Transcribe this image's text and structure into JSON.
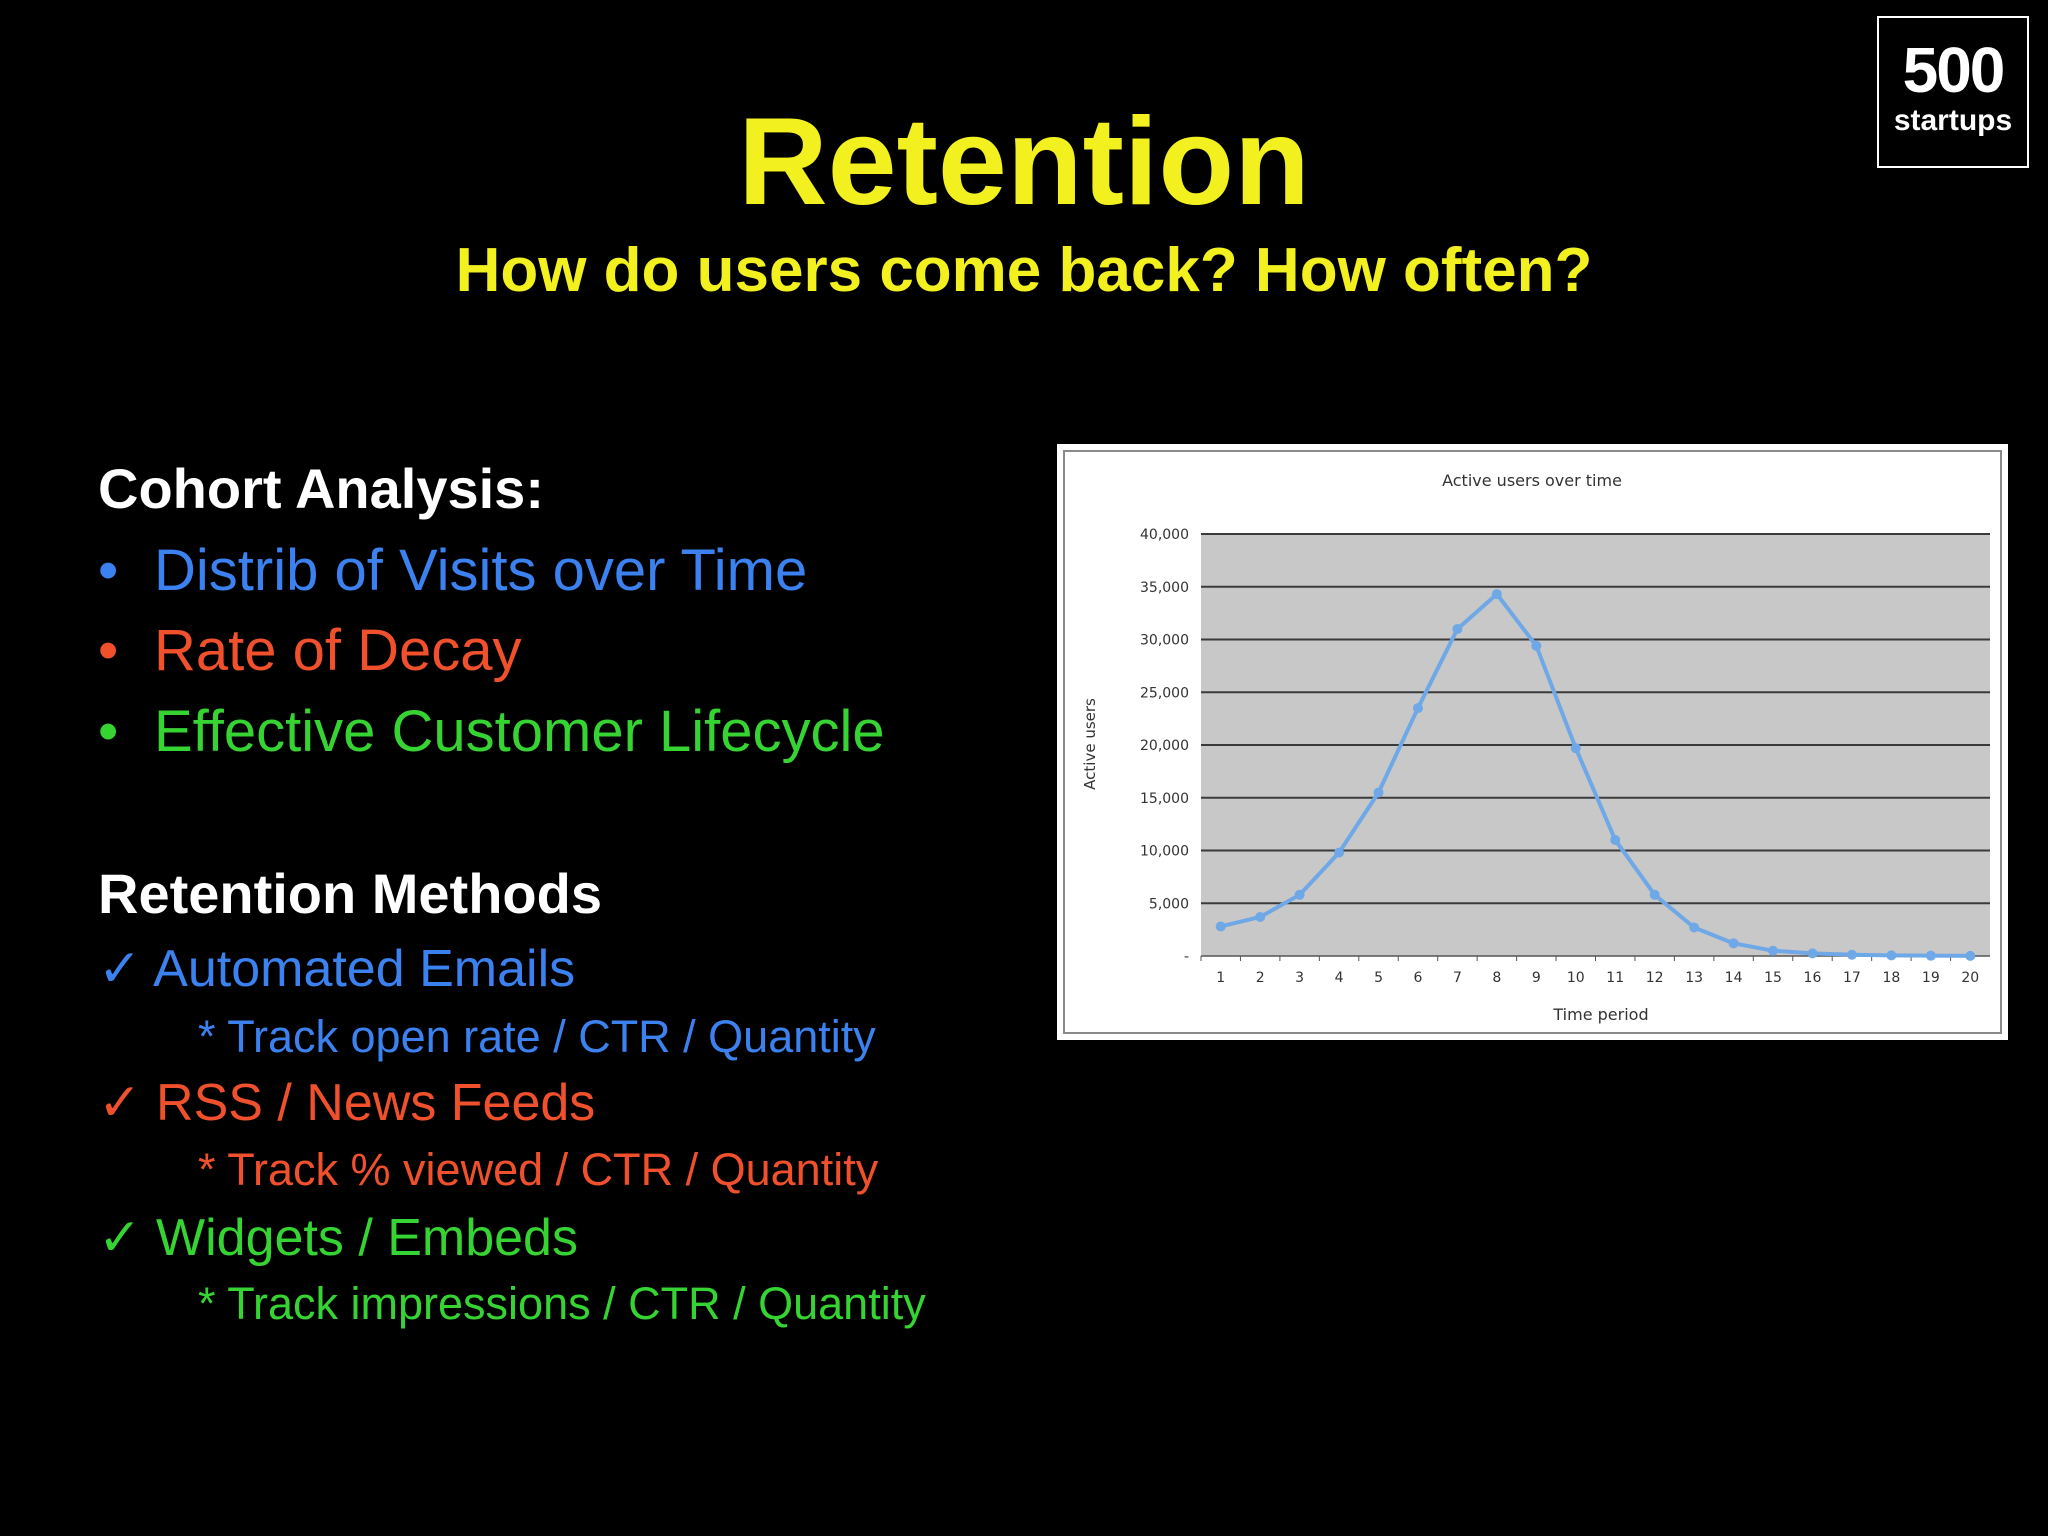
{
  "logo": {
    "number": "500",
    "word": "startups"
  },
  "slide": {
    "title": "Retention",
    "subtitle": "How do users come back? How often?"
  },
  "cohort": {
    "heading": "Cohort Analysis:",
    "bullet_char": "•",
    "items": [
      {
        "label": "Distrib of Visits over Time",
        "color": "#3b82f0"
      },
      {
        "label": "Rate of Decay",
        "color": "#f0502c"
      },
      {
        "label": "Effective Customer Lifecycle",
        "color": "#35d433"
      }
    ]
  },
  "methods": {
    "heading": "Retention Methods",
    "check_char": "✓",
    "items": [
      {
        "label": "Automated Emails",
        "detail": "* Track open rate / CTR / Quantity",
        "color": "#3b82f0"
      },
      {
        "label": "RSS / News Feeds",
        "detail": "* Track % viewed / CTR / Quantity",
        "color": "#f0502c"
      },
      {
        "label": "Widgets / Embeds",
        "detail": "* Track impressions / CTR / Quantity",
        "color": "#35d433"
      }
    ]
  },
  "chart_data": {
    "type": "line",
    "title": "Active users over time",
    "xlabel": "Time period",
    "ylabel": "Active users",
    "x": [
      1,
      2,
      3,
      4,
      5,
      6,
      7,
      8,
      9,
      10,
      11,
      12,
      13,
      14,
      15,
      16,
      17,
      18,
      19,
      20
    ],
    "series": [
      {
        "values": [
          2800,
          3700,
          5800,
          9800,
          15500,
          23500,
          31000,
          34300,
          29400,
          19700,
          11000,
          5800,
          2700,
          1200,
          500,
          250,
          120,
          60,
          30,
          10
        ],
        "color": "#6fa8e6"
      }
    ],
    "ylim": [
      0,
      40000
    ],
    "yticks": [
      0,
      5000,
      10000,
      15000,
      20000,
      25000,
      30000,
      35000,
      40000
    ],
    "ytick_labels": [
      "-",
      "5,000",
      "10,000",
      "15,000",
      "20,000",
      "25,000",
      "30,000",
      "35,000",
      "40,000"
    ],
    "grid": true,
    "plot_background": "#c8c8c8"
  }
}
